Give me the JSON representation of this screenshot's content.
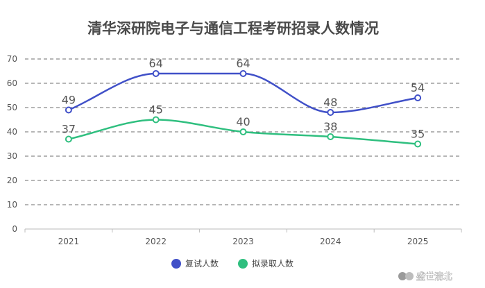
{
  "chart_data": {
    "type": "line",
    "title": "清华深研院电子与通信工程考研招录人数情况",
    "categories": [
      "2021",
      "2022",
      "2023",
      "2024",
      "2025"
    ],
    "ylim": [
      0,
      70
    ],
    "yticks": [
      0,
      10,
      20,
      30,
      40,
      50,
      60,
      70
    ],
    "grid": true,
    "legend_position": "bottom-center",
    "series": [
      {
        "name": "复试人数",
        "values": [
          49,
          64,
          64,
          48,
          54
        ],
        "color": "#4050c8",
        "smooth": true
      },
      {
        "name": "拟录取人数",
        "values": [
          37,
          45,
          40,
          38,
          35
        ],
        "color": "#2fbf7f",
        "smooth": true
      }
    ]
  },
  "watermark": {
    "text": "盛世清北"
  }
}
